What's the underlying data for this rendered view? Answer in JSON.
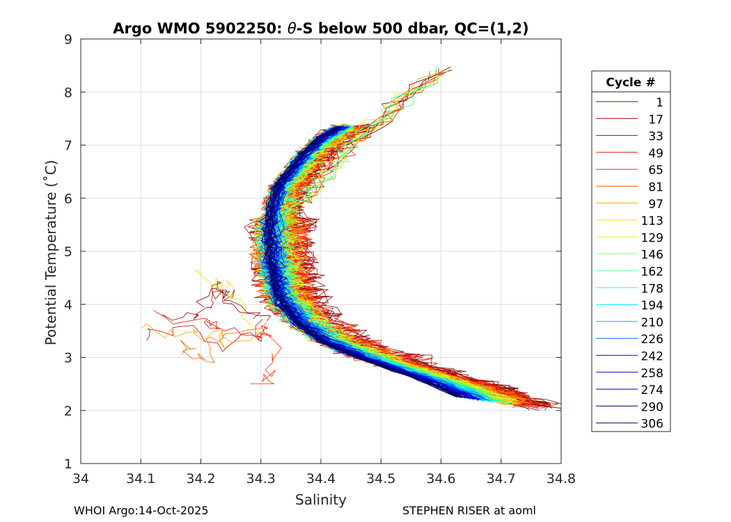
{
  "chart_data": {
    "type": "line",
    "title": "Argo WMO 5902250: θ-S below 500 dbar,  QC=(1,2)",
    "title_prefix": "Argo WMO 5902250: ",
    "title_theta": "θ",
    "title_suffix": "-S below 500 dbar,  QC=(1,2)",
    "xlabel": "Salinity",
    "ylabel": "Potential Temperature (˚C)",
    "xlim": [
      34,
      34.8
    ],
    "ylim": [
      1,
      9
    ],
    "xticks": [
      "34",
      "34.1",
      "34.2",
      "34.3",
      "34.4",
      "34.5",
      "34.6",
      "34.7",
      "34.8"
    ],
    "yticks": [
      "1",
      "2",
      "3",
      "4",
      "5",
      "6",
      "7",
      "8",
      "9"
    ],
    "grid": true,
    "legend_title": "Cycle #",
    "legend_position": "right-outside",
    "series": [
      {
        "name": "1",
        "color": "#800000"
      },
      {
        "name": "17",
        "color": "#a00000"
      },
      {
        "name": "33",
        "color": "#c00000"
      },
      {
        "name": "49",
        "color": "#e01000"
      },
      {
        "name": "65",
        "color": "#ff3000"
      },
      {
        "name": "81",
        "color": "#ff6000"
      },
      {
        "name": "97",
        "color": "#ffa000"
      },
      {
        "name": "113",
        "color": "#ffe000"
      },
      {
        "name": "129",
        "color": "#d0ff20"
      },
      {
        "name": "146",
        "color": "#90ff50"
      },
      {
        "name": "162",
        "color": "#50ff80"
      },
      {
        "name": "178",
        "color": "#20ffc0"
      },
      {
        "name": "194",
        "color": "#00e0ff"
      },
      {
        "name": "210",
        "color": "#00a0ff"
      },
      {
        "name": "226",
        "color": "#0060ff"
      },
      {
        "name": "242",
        "color": "#0020ff"
      },
      {
        "name": "258",
        "color": "#0000d0"
      },
      {
        "name": "274",
        "color": "#0000a0"
      },
      {
        "name": "290",
        "color": "#000080"
      },
      {
        "name": "306",
        "color": "#000060"
      }
    ],
    "mean_curve": {
      "salinity": [
        34.43,
        34.4,
        34.37,
        34.345,
        34.325,
        34.315,
        34.312,
        34.315,
        34.322,
        34.335,
        34.36,
        34.4,
        34.45,
        34.51,
        34.57,
        34.63
      ],
      "theta": [
        7.35,
        7.15,
        6.85,
        6.5,
        6.2,
        5.8,
        5.3,
        4.8,
        4.4,
        4.0,
        3.65,
        3.3,
        3.05,
        2.8,
        2.55,
        2.25
      ]
    },
    "deep_branch": {
      "salinity": [
        34.45,
        34.52,
        34.6,
        34.66,
        34.71,
        34.75
      ],
      "theta": [
        3.15,
        2.95,
        2.7,
        2.5,
        2.3,
        2.05
      ]
    },
    "upper_branch": {
      "salinity": [
        34.33,
        34.36,
        34.4,
        34.44,
        34.48,
        34.53,
        34.6
      ],
      "theta": [
        5.5,
        5.9,
        6.4,
        6.9,
        7.3,
        7.8,
        8.4
      ]
    }
  },
  "footer": {
    "left": "WHOI Argo:14-Oct-2025",
    "right": "STEPHEN RISER at aoml"
  }
}
